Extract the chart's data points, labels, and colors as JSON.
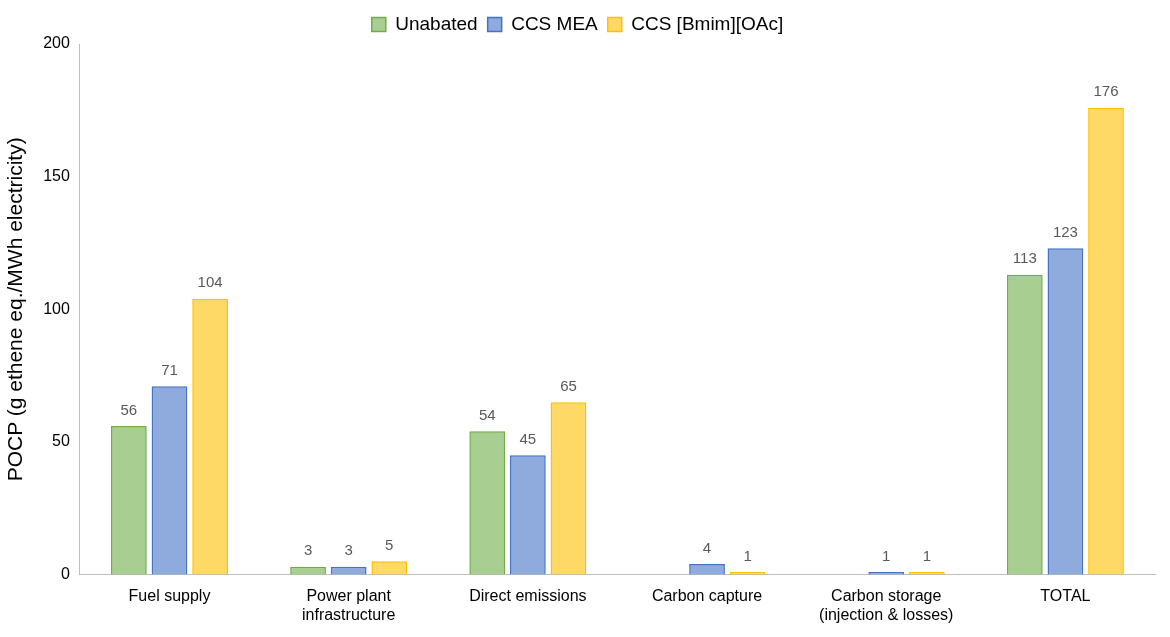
{
  "chart_data": {
    "type": "bar",
    "ylabel": "POCP (g ethene eq./MWh electricity)",
    "categories": [
      "Fuel supply",
      "Power plant\ninfrastructure",
      "Direct emissions",
      "Carbon capture",
      "Carbon storage\n(injection & losses)",
      "TOTAL"
    ],
    "series": [
      {
        "name": "Unabated",
        "color": "#70ad47",
        "values": [
          56,
          3,
          54,
          null,
          null,
          113
        ]
      },
      {
        "name": "CCS MEA",
        "color": "#4472c4",
        "values": [
          71,
          3,
          45,
          4,
          1,
          123
        ]
      },
      {
        "name": "CCS [Bmim][OAc]",
        "color": "#ffc000",
        "values": [
          104,
          5,
          65,
          1,
          1,
          176
        ]
      }
    ],
    "ylim": [
      0,
      200
    ],
    "yticks": [
      0,
      50,
      100,
      150,
      200
    ],
    "grid": false,
    "legend": "top",
    "data_labels": true
  }
}
